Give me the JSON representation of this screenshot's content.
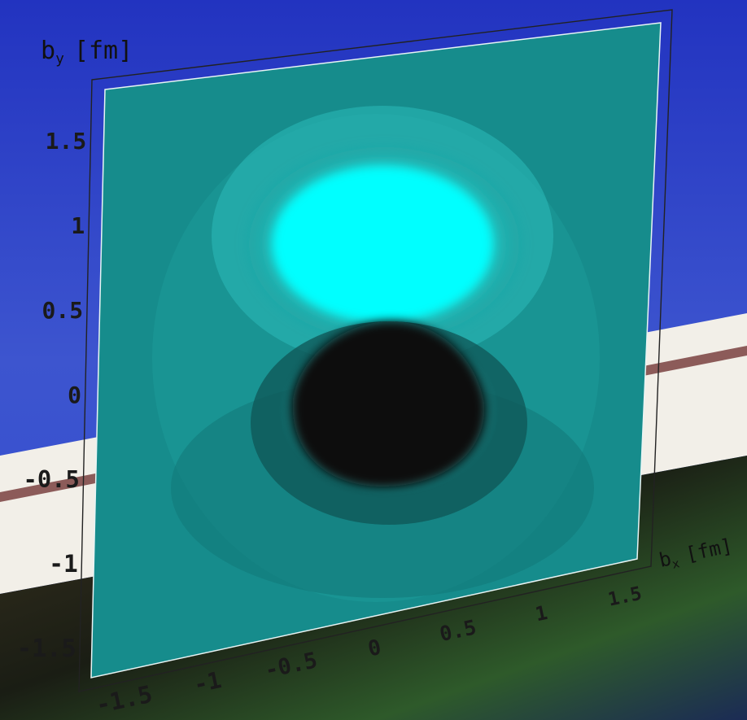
{
  "chart_data": {
    "type": "heatmap",
    "title": "",
    "xlabel": "b_x [fm]",
    "ylabel": "b_y [fm]",
    "xlabel_main": "b",
    "xlabel_sub": "x",
    "xlabel_unit": "[fm]",
    "ylabel_main": "b",
    "ylabel_sub": "y",
    "ylabel_unit": "[fm]",
    "xlim": [
      -1.8,
      1.8
    ],
    "ylim": [
      -1.8,
      1.8
    ],
    "x_ticks": [
      "-1.5",
      "-1",
      "-0.5",
      "0",
      "0.5",
      "1",
      "1.5"
    ],
    "y_ticks": [
      "-1.5",
      "-1",
      "-0.5",
      "0",
      "0.5",
      "1",
      "1.5"
    ],
    "x_tick_values": [
      -1.5,
      -1,
      -0.5,
      0,
      0.5,
      1,
      1.5
    ],
    "y_tick_values": [
      -1.5,
      -1,
      -0.5,
      0,
      0.5,
      1,
      1.5
    ],
    "grid": false,
    "colormap": {
      "low": "#0b0b0b",
      "mid": "#148c8c",
      "high": "#00ffff"
    },
    "features": [
      {
        "name": "positive lobe",
        "center": [
          0.0,
          0.85
        ],
        "radii": [
          0.85,
          0.6
        ],
        "level": "max"
      },
      {
        "name": "negative lobe",
        "center": [
          0.1,
          -0.25
        ],
        "radii": [
          0.65,
          0.55
        ],
        "level": "min"
      }
    ],
    "background_colors": {
      "top": "#2f48c4",
      "band": "#f2efe8",
      "bottom": "#1c2a22"
    }
  }
}
